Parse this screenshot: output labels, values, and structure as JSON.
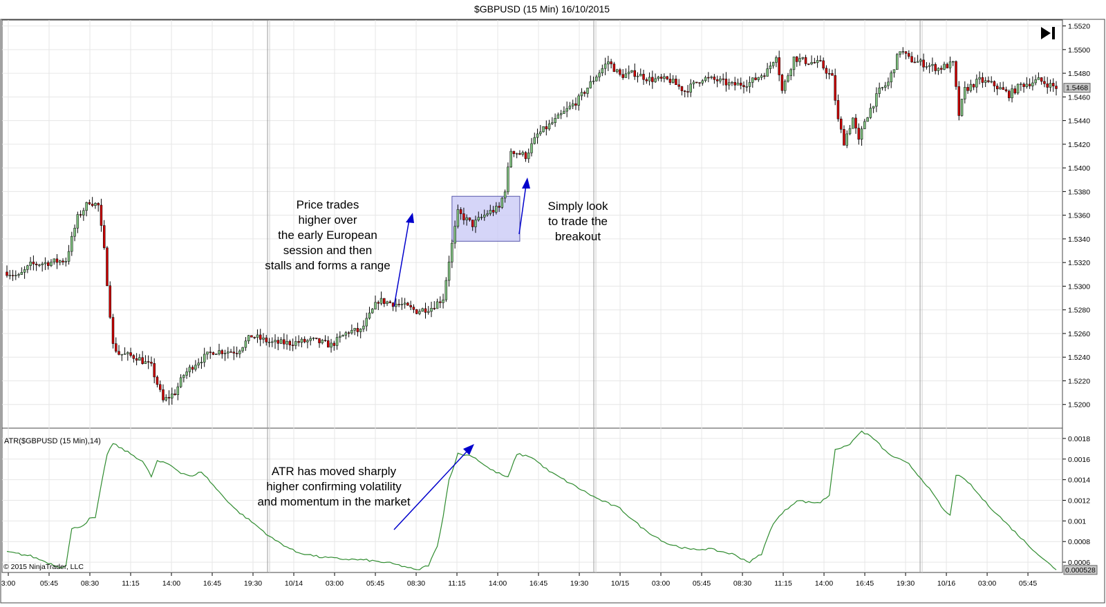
{
  "window": {
    "title": "$GBPUSD (15 Min)  16/10/2015",
    "copyright": "© 2015 NinjaTrader, LLC",
    "play_end_icon": "skip-to-end-icon"
  },
  "colors": {
    "up_candle": "#7fbf7f",
    "down_candle": "#cc0000",
    "wick": "#000000",
    "atr_line": "#2e8b2e",
    "annotation_arrow": "#0000cc",
    "range_box_fill": "#c7c7f5",
    "range_box_stroke": "#5555aa",
    "grid": "#e6e6e6",
    "session_line": "#999999"
  },
  "chart_data": [
    {
      "type": "candlestick",
      "title": "$GBPUSD (15 Min)  16/10/2015",
      "ylim": [
        1.518,
        1.5525
      ],
      "y_ticks": [
        "1.5520",
        "1.5500",
        "1.5480",
        "1.5460",
        "1.5440",
        "1.5420",
        "1.5400",
        "1.5380",
        "1.5360",
        "1.5340",
        "1.5320",
        "1.5300",
        "1.5280",
        "1.5260",
        "1.5240",
        "1.5220",
        "1.5200"
      ],
      "current_price_label": "1.5468",
      "current_price": 1.5468,
      "x_ticks": [
        "3:00",
        "05:45",
        "08:30",
        "11:15",
        "14:00",
        "16:45",
        "19:30",
        "10/14",
        "03:00",
        "05:45",
        "08:30",
        "11:15",
        "14:00",
        "16:45",
        "19:30",
        "10/15",
        "03:00",
        "05:45",
        "08:30",
        "11:15",
        "14:00",
        "16:45",
        "19:30",
        "10/16",
        "03:00",
        "05:45"
      ],
      "session_breaks": [
        "10/14",
        "10/15",
        "10/16"
      ],
      "grid": true,
      "anchors": [
        {
          "i": 0,
          "p": 1.5312
        },
        {
          "i": 4,
          "p": 1.5308
        },
        {
          "i": 8,
          "p": 1.5318
        },
        {
          "i": 20,
          "p": 1.5322
        },
        {
          "i": 24,
          "p": 1.5358
        },
        {
          "i": 28,
          "p": 1.5372
        },
        {
          "i": 31,
          "p": 1.5368
        },
        {
          "i": 33,
          "p": 1.533
        },
        {
          "i": 36,
          "p": 1.525
        },
        {
          "i": 38,
          "p": 1.5243
        },
        {
          "i": 44,
          "p": 1.524
        },
        {
          "i": 49,
          "p": 1.5232
        },
        {
          "i": 53,
          "p": 1.5203
        },
        {
          "i": 57,
          "p": 1.521
        },
        {
          "i": 60,
          "p": 1.5225
        },
        {
          "i": 64,
          "p": 1.5235
        },
        {
          "i": 70,
          "p": 1.5245
        },
        {
          "i": 78,
          "p": 1.5245
        },
        {
          "i": 83,
          "p": 1.5258
        },
        {
          "i": 90,
          "p": 1.5252
        },
        {
          "i": 96,
          "p": 1.5252
        },
        {
          "i": 104,
          "p": 1.5254
        },
        {
          "i": 110,
          "p": 1.525
        },
        {
          "i": 116,
          "p": 1.5262
        },
        {
          "i": 120,
          "p": 1.5262
        },
        {
          "i": 126,
          "p": 1.5288
        },
        {
          "i": 134,
          "p": 1.5284
        },
        {
          "i": 139,
          "p": 1.5279
        },
        {
          "i": 144,
          "p": 1.5282
        },
        {
          "i": 148,
          "p": 1.529
        },
        {
          "i": 150,
          "p": 1.5322
        },
        {
          "i": 153,
          "p": 1.5362
        },
        {
          "i": 158,
          "p": 1.5352
        },
        {
          "i": 163,
          "p": 1.5362
        },
        {
          "i": 167,
          "p": 1.5366
        },
        {
          "i": 169,
          "p": 1.5382
        },
        {
          "i": 171,
          "p": 1.5415
        },
        {
          "i": 176,
          "p": 1.541
        },
        {
          "i": 180,
          "p": 1.5428
        },
        {
          "i": 186,
          "p": 1.544
        },
        {
          "i": 194,
          "p": 1.5458
        },
        {
          "i": 200,
          "p": 1.5478
        },
        {
          "i": 204,
          "p": 1.549
        },
        {
          "i": 208,
          "p": 1.5478
        },
        {
          "i": 213,
          "p": 1.548
        },
        {
          "i": 218,
          "p": 1.5475
        },
        {
          "i": 225,
          "p": 1.5474
        },
        {
          "i": 230,
          "p": 1.5465
        },
        {
          "i": 236,
          "p": 1.5476
        },
        {
          "i": 241,
          "p": 1.5474
        },
        {
          "i": 246,
          "p": 1.547
        },
        {
          "i": 252,
          "p": 1.5472
        },
        {
          "i": 258,
          "p": 1.5482
        },
        {
          "i": 261,
          "p": 1.5496
        },
        {
          "i": 263,
          "p": 1.5465
        },
        {
          "i": 267,
          "p": 1.5493
        },
        {
          "i": 271,
          "p": 1.549
        },
        {
          "i": 276,
          "p": 1.5488
        },
        {
          "i": 280,
          "p": 1.5476
        },
        {
          "i": 282,
          "p": 1.544
        },
        {
          "i": 284,
          "p": 1.5422
        },
        {
          "i": 287,
          "p": 1.5442
        },
        {
          "i": 289,
          "p": 1.5422
        },
        {
          "i": 291,
          "p": 1.544
        },
        {
          "i": 296,
          "p": 1.5465
        },
        {
          "i": 299,
          "p": 1.5472
        },
        {
          "i": 303,
          "p": 1.55
        },
        {
          "i": 306,
          "p": 1.5492
        },
        {
          "i": 311,
          "p": 1.5488
        },
        {
          "i": 316,
          "p": 1.5484
        },
        {
          "i": 321,
          "p": 1.5488
        },
        {
          "i": 323,
          "p": 1.5445
        },
        {
          "i": 325,
          "p": 1.5466
        },
        {
          "i": 330,
          "p": 1.5474
        },
        {
          "i": 335,
          "p": 1.547
        },
        {
          "i": 340,
          "p": 1.5462
        },
        {
          "i": 344,
          "p": 1.547
        },
        {
          "i": 350,
          "p": 1.5474
        },
        {
          "i": 356,
          "p": 1.5468
        }
      ],
      "bar_count": 357,
      "range_box": {
        "start_bar": 151,
        "end_bar": 174,
        "price_low": 1.5338,
        "price_high": 1.5376
      }
    },
    {
      "type": "line",
      "title": "ATR($GBPUSD (15 Min),14)",
      "ylim": [
        0.0005,
        0.0019
      ],
      "y_ticks": [
        "0.0018",
        "0.0016",
        "0.0014",
        "0.0012",
        "0.001",
        "0.0008",
        "0.0006"
      ],
      "current_value_label": "0.000528",
      "current_value": 0.000528,
      "points": [
        {
          "i": 0,
          "v": 0.0007
        },
        {
          "i": 8,
          "v": 0.00066
        },
        {
          "i": 18,
          "v": 0.00055
        },
        {
          "i": 20,
          "v": 0.00057
        },
        {
          "i": 22,
          "v": 0.00092
        },
        {
          "i": 26,
          "v": 0.00096
        },
        {
          "i": 28,
          "v": 0.00102
        },
        {
          "i": 30,
          "v": 0.00103
        },
        {
          "i": 34,
          "v": 0.00165
        },
        {
          "i": 36,
          "v": 0.00175
        },
        {
          "i": 42,
          "v": 0.00165
        },
        {
          "i": 46,
          "v": 0.00158
        },
        {
          "i": 49,
          "v": 0.00143
        },
        {
          "i": 51,
          "v": 0.00158
        },
        {
          "i": 55,
          "v": 0.00155
        },
        {
          "i": 59,
          "v": 0.00147
        },
        {
          "i": 63,
          "v": 0.00143
        },
        {
          "i": 66,
          "v": 0.00148
        },
        {
          "i": 72,
          "v": 0.00128
        },
        {
          "i": 78,
          "v": 0.0011
        },
        {
          "i": 84,
          "v": 0.00097
        },
        {
          "i": 90,
          "v": 0.00083
        },
        {
          "i": 98,
          "v": 0.0007
        },
        {
          "i": 106,
          "v": 0.00065
        },
        {
          "i": 114,
          "v": 0.00063
        },
        {
          "i": 122,
          "v": 0.00062
        },
        {
          "i": 130,
          "v": 0.00059
        },
        {
          "i": 136,
          "v": 0.00055
        },
        {
          "i": 139,
          "v": 0.00052
        },
        {
          "i": 143,
          "v": 0.00057
        },
        {
          "i": 146,
          "v": 0.00075
        },
        {
          "i": 148,
          "v": 0.00105
        },
        {
          "i": 150,
          "v": 0.0014
        },
        {
          "i": 153,
          "v": 0.00165
        },
        {
          "i": 158,
          "v": 0.00163
        },
        {
          "i": 164,
          "v": 0.0015
        },
        {
          "i": 170,
          "v": 0.00142
        },
        {
          "i": 173,
          "v": 0.00165
        },
        {
          "i": 178,
          "v": 0.00162
        },
        {
          "i": 184,
          "v": 0.00148
        },
        {
          "i": 192,
          "v": 0.00135
        },
        {
          "i": 200,
          "v": 0.00122
        },
        {
          "i": 208,
          "v": 0.00112
        },
        {
          "i": 216,
          "v": 0.00092
        },
        {
          "i": 224,
          "v": 0.00078
        },
        {
          "i": 232,
          "v": 0.00072
        },
        {
          "i": 238,
          "v": 0.00073
        },
        {
          "i": 246,
          "v": 0.00068
        },
        {
          "i": 252,
          "v": 0.0006
        },
        {
          "i": 256,
          "v": 0.00068
        },
        {
          "i": 260,
          "v": 0.00098
        },
        {
          "i": 264,
          "v": 0.0011
        },
        {
          "i": 268,
          "v": 0.0012
        },
        {
          "i": 272,
          "v": 0.00118
        },
        {
          "i": 276,
          "v": 0.00118
        },
        {
          "i": 279,
          "v": 0.00125
        },
        {
          "i": 281,
          "v": 0.0017
        },
        {
          "i": 285,
          "v": 0.00172
        },
        {
          "i": 290,
          "v": 0.00187
        },
        {
          "i": 294,
          "v": 0.0018
        },
        {
          "i": 299,
          "v": 0.00165
        },
        {
          "i": 306,
          "v": 0.00155
        },
        {
          "i": 312,
          "v": 0.00135
        },
        {
          "i": 318,
          "v": 0.0011
        },
        {
          "i": 320,
          "v": 0.00105
        },
        {
          "i": 322,
          "v": 0.00145
        },
        {
          "i": 326,
          "v": 0.00138
        },
        {
          "i": 332,
          "v": 0.00118
        },
        {
          "i": 340,
          "v": 0.00095
        },
        {
          "i": 346,
          "v": 0.00078
        },
        {
          "i": 352,
          "v": 0.00062
        },
        {
          "i": 356,
          "v": 0.00053
        }
      ]
    }
  ],
  "annotations": {
    "price_note": [
      "Price trades",
      "higher over",
      "the early European",
      "session and then",
      "stalls and forms a range"
    ],
    "breakout_note": [
      "Simply look",
      "to trade the",
      "breakout"
    ],
    "atr_note": [
      "ATR has moved sharply",
      "higher confirming volatility",
      "and momentum in the market"
    ]
  }
}
